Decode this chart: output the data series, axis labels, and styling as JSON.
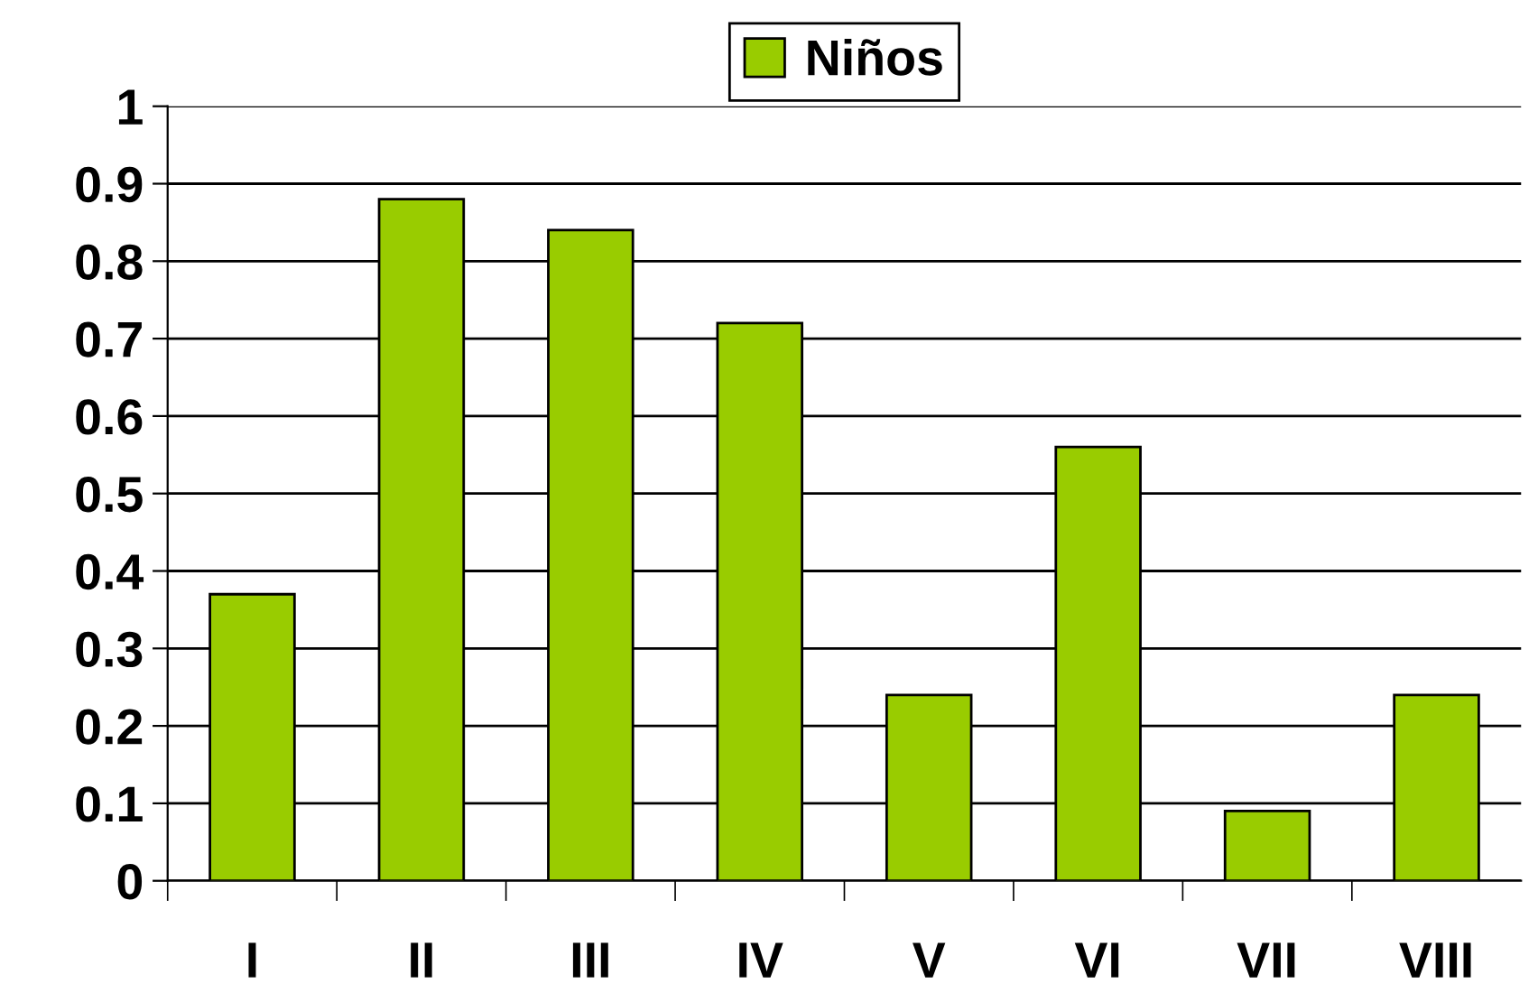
{
  "chart_data": {
    "type": "bar",
    "categories": [
      "I",
      "II",
      "III",
      "IV",
      "V",
      "VI",
      "VII",
      "VIII"
    ],
    "series": [
      {
        "name": "Niños",
        "color": "#99cc00",
        "values": [
          0.37,
          0.88,
          0.84,
          0.72,
          0.24,
          0.56,
          0.09,
          0.24
        ]
      }
    ],
    "ylim": [
      0,
      1
    ],
    "yticks": [
      0,
      0.1,
      0.2,
      0.3,
      0.4,
      0.5,
      0.6,
      0.7,
      0.8,
      0.9,
      1
    ],
    "grid": "y",
    "legend": "top"
  }
}
